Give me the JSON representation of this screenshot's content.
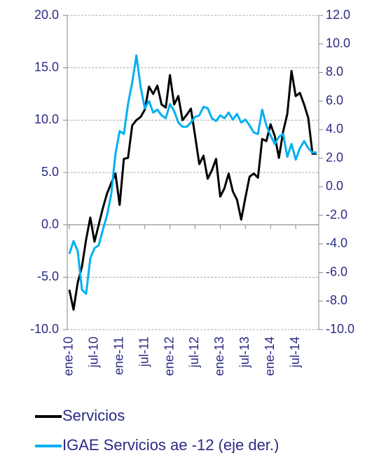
{
  "chart_data": {
    "type": "line",
    "categories": [
      "ene-10",
      null,
      null,
      null,
      null,
      null,
      "jul-10",
      null,
      null,
      null,
      null,
      null,
      "ene-11",
      null,
      null,
      null,
      null,
      null,
      "jul-11",
      null,
      null,
      null,
      null,
      null,
      "ene-12",
      null,
      null,
      null,
      null,
      null,
      "jul-12",
      null,
      null,
      null,
      null,
      null,
      "ene-13",
      null,
      null,
      null,
      null,
      null,
      "jul-13",
      null,
      null,
      null,
      null,
      null,
      "ene-14",
      null,
      null,
      null,
      null,
      null,
      "jul-14",
      null,
      null,
      null,
      null,
      null
    ],
    "series": [
      {
        "name": "Servicios",
        "color": "#000000",
        "values": [
          -6.2,
          -8.1,
          -5.5,
          -4.0,
          -1.4,
          0.7,
          -1.6,
          0.0,
          1.6,
          3.0,
          4.0,
          4.9,
          1.9,
          6.3,
          6.4,
          9.5,
          10.0,
          10.3,
          11.0,
          13.2,
          12.5,
          13.3,
          11.5,
          11.2,
          14.3,
          11.5,
          12.3,
          10.0,
          10.5,
          11.1,
          8.5,
          5.8,
          6.6,
          4.4,
          5.2,
          6.3,
          2.7,
          3.5,
          4.9,
          3.2,
          2.4,
          0.5,
          2.6,
          4.6,
          4.9,
          4.5,
          8.2,
          8.0,
          9.6,
          8.5,
          6.4,
          8.9,
          10.6,
          14.7,
          12.3,
          12.6,
          11.5,
          10.2,
          6.8,
          6.8
        ]
      },
      {
        "name": "IGAE Servicios ae -12 (eje der.)",
        "color": "#00b0f0",
        "axis": "y2",
        "values": [
          -4.7,
          -3.8,
          -4.5,
          -7.2,
          -7.5,
          -5.0,
          -4.3,
          -4.1,
          -3.0,
          -2.0,
          -0.5,
          2.3,
          3.9,
          3.7,
          5.8,
          7.3,
          9.2,
          7.0,
          5.5,
          6.0,
          5.2,
          5.4,
          5.0,
          4.8,
          5.8,
          5.3,
          4.5,
          4.2,
          4.2,
          4.5,
          4.9,
          5.0,
          5.6,
          5.5,
          4.8,
          4.6,
          5.0,
          4.8,
          5.2,
          4.7,
          5.1,
          4.5,
          4.7,
          4.3,
          3.8,
          3.7,
          5.4,
          4.3,
          3.6,
          3.0,
          3.5,
          3.7,
          2.1,
          3.0,
          1.9,
          2.7,
          3.2,
          2.7,
          2.4,
          2.4
        ]
      }
    ],
    "ylim": [
      -10,
      20
    ],
    "yticks": [
      {
        "value": -10,
        "label": "-10.0"
      },
      {
        "value": -5,
        "label": "-5.0"
      },
      {
        "value": 0,
        "label": "0.0"
      },
      {
        "value": 5,
        "label": "5.0"
      },
      {
        "value": 10,
        "label": "10.0"
      },
      {
        "value": 15,
        "label": "15.0"
      },
      {
        "value": 20,
        "label": "20.0"
      }
    ],
    "y2lim": [
      -10,
      12
    ],
    "y2ticks": [
      {
        "value": -10,
        "label": "-10.0"
      },
      {
        "value": -8,
        "label": "-8.0"
      },
      {
        "value": -6,
        "label": "-6.0"
      },
      {
        "value": -4,
        "label": "-4.0"
      },
      {
        "value": -2,
        "label": "-2.0"
      },
      {
        "value": 0,
        "label": "0.0"
      },
      {
        "value": 2,
        "label": "2.0"
      },
      {
        "value": 4,
        "label": "4.0"
      },
      {
        "value": 6,
        "label": "6.0"
      },
      {
        "value": 8,
        "label": "8.0"
      },
      {
        "value": 10,
        "label": "10.0"
      },
      {
        "value": 12,
        "label": "12.0"
      }
    ],
    "grid": true,
    "legend": "bottom"
  }
}
